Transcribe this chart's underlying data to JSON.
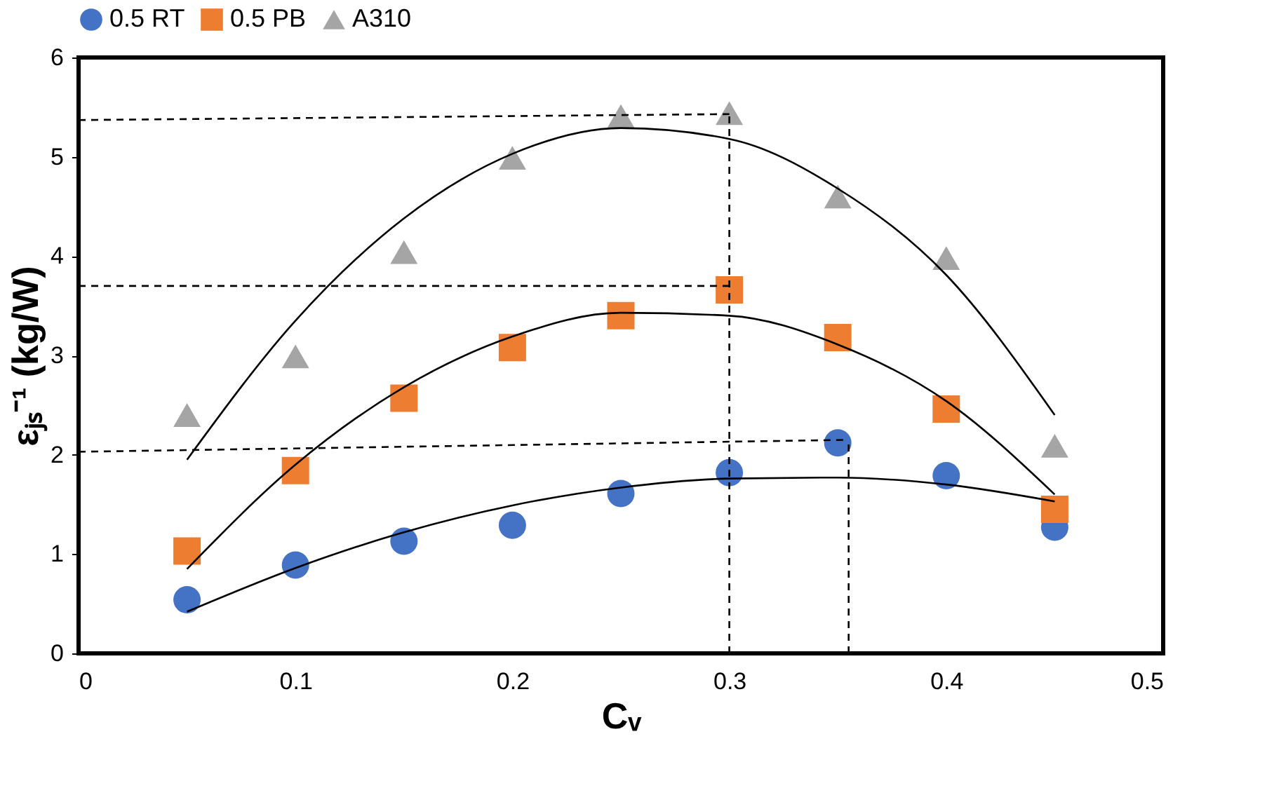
{
  "chart_data": {
    "type": "scatter",
    "xlabel": "Cᵥ",
    "ylabel": "εⱼₛ⁻¹ (kg/W)",
    "xlim": [
      0,
      0.5
    ],
    "xticks": [
      0,
      0.1,
      0.2,
      0.3,
      0.4,
      0.5
    ],
    "ylim": [
      0,
      6
    ],
    "yticks": [
      0,
      1,
      2,
      3,
      4,
      5,
      6
    ],
    "grid": false,
    "legend": "top",
    "x": [
      0.05,
      0.1,
      0.15,
      0.2,
      0.25,
      0.3,
      0.35,
      0.4,
      0.45
    ],
    "series": [
      {
        "name": "0.5 RT",
        "color": "#4472c4",
        "marker": "circle",
        "values": [
          0.54,
          0.89,
          1.13,
          1.29,
          1.61,
          1.82,
          2.12,
          1.79,
          1.27
        ]
      },
      {
        "name": "0.5 PB",
        "color": "#ed7d31",
        "marker": "square",
        "values": [
          1.03,
          1.84,
          2.57,
          3.08,
          3.4,
          3.66,
          3.18,
          2.46,
          1.45
        ]
      },
      {
        "name": "A310",
        "color": "#a5a5a5",
        "marker": "triangle",
        "values": [
          2.4,
          2.99,
          4.04,
          4.99,
          5.41,
          5.44,
          4.6,
          3.98,
          2.09
        ]
      },
      {
        "type": "line",
        "color": "#000000",
        "line_style": "solid",
        "values": [
          0.42,
          0.86,
          1.22,
          1.49,
          1.67,
          1.76,
          1.77,
          1.7,
          1.53
        ]
      },
      {
        "type": "line",
        "color": "#000000",
        "line_style": "solid",
        "values": [
          0.85,
          1.9,
          2.68,
          3.19,
          3.43,
          3.4,
          3.11,
          2.54,
          1.6
        ]
      },
      {
        "type": "line",
        "color": "#000000",
        "line_style": "solid",
        "values": [
          1.95,
          3.35,
          4.38,
          5.03,
          5.29,
          5.18,
          4.68,
          3.81,
          2.4
        ]
      },
      {
        "type": "line",
        "color": "#000000",
        "line_style": "dashed",
        "x": [
          0,
          0.3
        ],
        "values": [
          5.37,
          5.43
        ]
      },
      {
        "type": "line",
        "color": "#000000",
        "line_style": "dashed",
        "x": [
          0.3,
          0.3
        ],
        "values": [
          0,
          5.43
        ]
      },
      {
        "type": "line",
        "color": "#000000",
        "line_style": "dashed",
        "x": [
          0,
          0.3
        ],
        "values": [
          3.7,
          3.7
        ]
      },
      {
        "type": "line",
        "color": "#000000",
        "line_style": "dashed",
        "x": [
          0,
          0.355
        ],
        "values": [
          2.03,
          2.15
        ]
      },
      {
        "type": "line",
        "color": "#000000",
        "line_style": "dashed",
        "x": [
          0.355,
          0.355
        ],
        "values": [
          0,
          2.15
        ]
      }
    ]
  }
}
